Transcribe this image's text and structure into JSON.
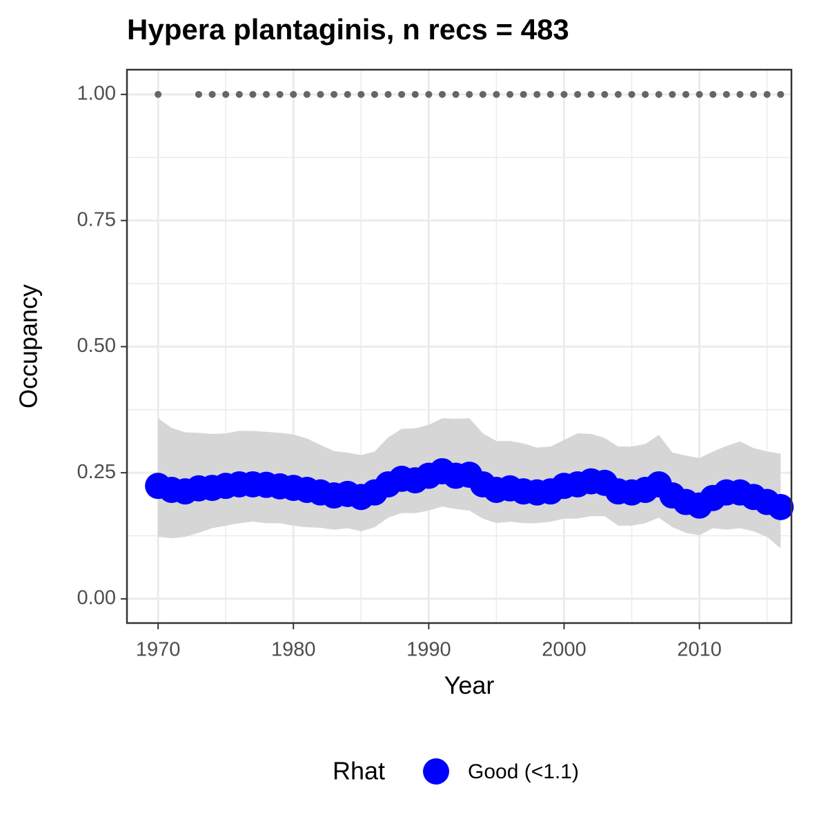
{
  "chart_data": {
    "type": "line",
    "title": "Hypera plantaginis, n recs = 483",
    "x_label": "Year",
    "y_label": "Occupancy",
    "legend_title": "Rhat",
    "legend_position": "bottom",
    "grid": true,
    "xlim": [
      1967.7,
      2016.8
    ],
    "ylim": [
      -0.048,
      1.049
    ],
    "xticks": [
      1970,
      1980,
      1990,
      2000,
      2010
    ],
    "yticks": [
      {
        "value": 0,
        "label": "0.00"
      },
      {
        "value": 0.25,
        "label": "0.25"
      },
      {
        "value": 0.5,
        "label": "0.50"
      },
      {
        "value": 0.75,
        "label": "0.75"
      },
      {
        "value": 1,
        "label": "1.00"
      }
    ],
    "minor_xticks": [
      1975,
      1985,
      1995,
      2005,
      2015
    ],
    "minor_yticks": [
      0.125,
      0.375,
      0.625,
      0.875
    ],
    "ribbon_color": "#d6d6d6",
    "x": [
      1970,
      1971,
      1972,
      1973,
      1974,
      1975,
      1976,
      1977,
      1978,
      1979,
      1980,
      1981,
      1982,
      1983,
      1984,
      1985,
      1986,
      1987,
      1988,
      1989,
      1990,
      1991,
      1992,
      1993,
      1994,
      1995,
      1996,
      1997,
      1998,
      1999,
      2000,
      2001,
      2002,
      2003,
      2004,
      2005,
      2006,
      2007,
      2008,
      2009,
      2010,
      2011,
      2012,
      2013,
      2014,
      2015,
      2016
    ],
    "series": [
      {
        "name": "Good (<1.1)",
        "color": "#0000ff",
        "values": [
          0.224,
          0.216,
          0.213,
          0.219,
          0.22,
          0.224,
          0.227,
          0.227,
          0.226,
          0.223,
          0.22,
          0.216,
          0.211,
          0.205,
          0.208,
          0.202,
          0.211,
          0.227,
          0.238,
          0.235,
          0.244,
          0.253,
          0.244,
          0.246,
          0.227,
          0.216,
          0.219,
          0.213,
          0.211,
          0.213,
          0.224,
          0.227,
          0.233,
          0.23,
          0.213,
          0.211,
          0.216,
          0.227,
          0.205,
          0.192,
          0.185,
          0.2,
          0.211,
          0.211,
          0.202,
          0.192,
          0.182
        ],
        "upper": [
          0.358,
          0.339,
          0.33,
          0.329,
          0.327,
          0.328,
          0.333,
          0.333,
          0.331,
          0.329,
          0.326,
          0.318,
          0.305,
          0.293,
          0.29,
          0.285,
          0.292,
          0.32,
          0.337,
          0.338,
          0.345,
          0.358,
          0.357,
          0.358,
          0.328,
          0.313,
          0.313,
          0.308,
          0.3,
          0.302,
          0.315,
          0.328,
          0.327,
          0.319,
          0.302,
          0.302,
          0.307,
          0.325,
          0.29,
          0.284,
          0.279,
          0.292,
          0.303,
          0.312,
          0.299,
          0.292,
          0.288
        ],
        "lower": [
          0.123,
          0.12,
          0.123,
          0.131,
          0.14,
          0.145,
          0.15,
          0.153,
          0.15,
          0.15,
          0.145,
          0.142,
          0.141,
          0.137,
          0.14,
          0.134,
          0.142,
          0.161,
          0.17,
          0.17,
          0.175,
          0.183,
          0.178,
          0.175,
          0.159,
          0.15,
          0.153,
          0.15,
          0.15,
          0.153,
          0.159,
          0.159,
          0.164,
          0.164,
          0.145,
          0.145,
          0.15,
          0.161,
          0.142,
          0.131,
          0.126,
          0.14,
          0.137,
          0.14,
          0.134,
          0.123,
          0.1
        ]
      }
    ],
    "records": {
      "color": "#666666",
      "x": [
        1970,
        1973,
        1974,
        1975,
        1976,
        1977,
        1978,
        1979,
        1980,
        1981,
        1982,
        1983,
        1984,
        1985,
        1986,
        1987,
        1988,
        1989,
        1990,
        1991,
        1992,
        1993,
        1994,
        1995,
        1996,
        1997,
        1998,
        1999,
        2000,
        2001,
        2002,
        2003,
        2004,
        2005,
        2006,
        2007,
        2008,
        2009,
        2010,
        2011,
        2012,
        2013,
        2014,
        2015,
        2016
      ],
      "values": [
        1,
        1,
        1,
        1,
        1,
        1,
        1,
        1,
        1,
        1,
        1,
        1,
        1,
        1,
        1,
        1,
        1,
        1,
        1,
        1,
        1,
        1,
        1,
        1,
        1,
        1,
        1,
        1,
        1,
        1,
        1,
        1,
        1,
        1,
        1,
        1,
        1,
        1,
        1,
        1,
        1,
        1,
        1,
        1,
        1
      ]
    }
  }
}
